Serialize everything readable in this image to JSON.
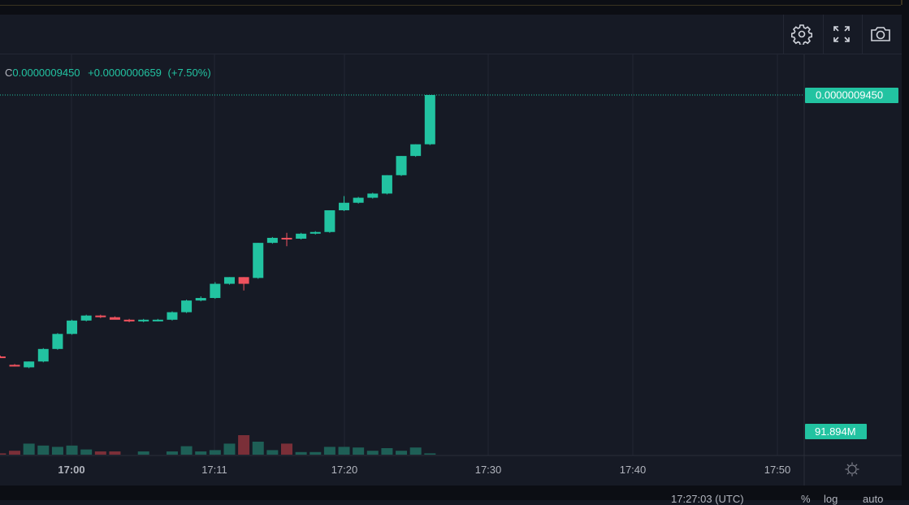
{
  "toolbar": {
    "settings_icon": "gear-icon",
    "fullscreen_icon": "fullscreen-icon",
    "snapshot_icon": "camera-icon"
  },
  "legend": {
    "close_label": "C",
    "close_value": "0.0000009450",
    "change": "+0.0000000659",
    "change_pct": "(+7.50%)"
  },
  "price_axis": {
    "last_price_label": "0.0000009450",
    "volume_label": "91.894M"
  },
  "time_axis": {
    "ticks": [
      "17:00",
      "17:11",
      "17:20",
      "17:30",
      "17:40",
      "17:50"
    ]
  },
  "bottom": {
    "clock": "17:27:03 (UTC)",
    "pct": "%",
    "log": "log",
    "auto": "auto"
  },
  "colors": {
    "up": "#22c3a1",
    "down": "#f0525e",
    "vol_up": "#1e5f56",
    "vol_down": "#7a2f38",
    "background": "#161a25",
    "grid": "#232734"
  },
  "chart_data": {
    "type": "candlestick",
    "x": [
      "16:57",
      "16:58",
      "16:59",
      "17:00",
      "17:01",
      "17:02",
      "17:03",
      "17:04",
      "17:05",
      "17:06",
      "17:07",
      "17:08",
      "17:09",
      "17:10",
      "17:11",
      "17:12",
      "17:13",
      "17:14",
      "17:15",
      "17:16",
      "17:17",
      "17:18",
      "17:19",
      "17:20",
      "17:21",
      "17:22",
      "17:23",
      "17:24",
      "17:25",
      "17:26",
      "17:27"
    ],
    "open": [
      6.32e-07,
      6.22e-07,
      6.19e-07,
      6.26e-07,
      6.41e-07,
      6.59e-07,
      6.75e-07,
      6.81e-07,
      6.79e-07,
      6.76e-07,
      6.74e-07,
      6.76e-07,
      6.76e-07,
      6.85e-07,
      6.99e-07,
      7.02e-07,
      7.19e-07,
      7.27e-07,
      7.26e-07,
      7.68e-07,
      7.74e-07,
      7.73e-07,
      7.79e-07,
      7.81e-07,
      8.07e-07,
      8.16e-07,
      8.22e-07,
      8.27e-07,
      8.49e-07,
      8.72e-07,
      8.86e-07
    ],
    "high": [
      6.33e-07,
      6.23e-07,
      6.26e-07,
      6.42e-07,
      6.6e-07,
      6.76e-07,
      6.82e-07,
      6.82e-07,
      6.8e-07,
      6.77e-07,
      6.77e-07,
      6.77e-07,
      6.86e-07,
      7e-07,
      7.04e-07,
      7.21e-07,
      7.27e-07,
      7.27e-07,
      7.68e-07,
      7.75e-07,
      7.8e-07,
      7.8e-07,
      7.82e-07,
      8.07e-07,
      8.24e-07,
      8.23e-07,
      8.28e-07,
      8.49e-07,
      8.72e-07,
      8.86e-07,
      9.45e-07
    ],
    "low": [
      6.31e-07,
      6.2e-07,
      6.18e-07,
      6.25e-07,
      6.4e-07,
      6.58e-07,
      6.74e-07,
      6.78e-07,
      6.77e-07,
      6.73e-07,
      6.73e-07,
      6.74e-07,
      6.75e-07,
      6.84e-07,
      6.98e-07,
      7.01e-07,
      7.18e-07,
      7.11e-07,
      7.25e-07,
      7.67e-07,
      7.64e-07,
      7.72e-07,
      7.78e-07,
      7.8e-07,
      8.06e-07,
      8.15e-07,
      8.21e-07,
      8.26e-07,
      8.48e-07,
      8.71e-07,
      8.85e-07
    ],
    "close": [
      6.31e-07,
      6.2e-07,
      6.26e-07,
      6.41e-07,
      6.59e-07,
      6.75e-07,
      6.81e-07,
      6.79e-07,
      6.76e-07,
      6.74e-07,
      6.76e-07,
      6.76e-07,
      6.85e-07,
      6.99e-07,
      7.02e-07,
      7.19e-07,
      7.27e-07,
      7.19e-07,
      7.68e-07,
      7.74e-07,
      7.73e-07,
      7.79e-07,
      7.81e-07,
      8.07e-07,
      8.16e-07,
      8.22e-07,
      8.27e-07,
      8.49e-07,
      8.72e-07,
      8.86e-07,
      9.45e-07
    ],
    "volume": [
      2,
      6,
      17,
      14,
      12,
      14,
      8,
      5,
      5,
      0,
      5,
      0,
      5,
      13,
      5,
      7,
      17,
      30,
      20,
      7,
      17,
      4,
      4,
      12,
      12,
      11,
      6,
      10,
      6,
      11,
      2
    ],
    "volume_unit": "M",
    "last_price": 9.45e-07,
    "last_volume": 91.894
  }
}
